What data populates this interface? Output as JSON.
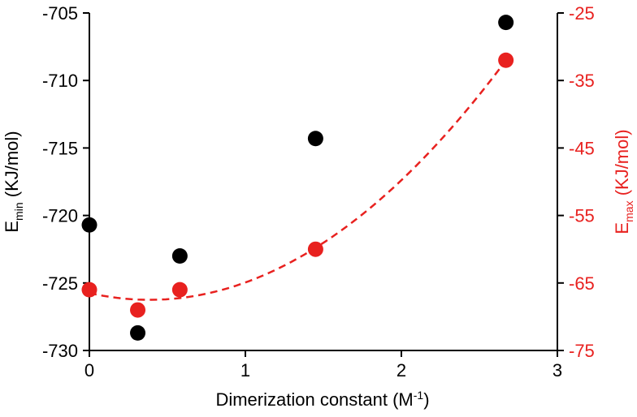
{
  "chart_data": {
    "type": "scatter",
    "title": "",
    "xlabel": "Dimerization constant (M",
    "xlabel_sup": "-1",
    "xlabel_tail": ")",
    "ylabel_left": {
      "base": "E",
      "sub": "min",
      "unit": " (KJ/mol)"
    },
    "ylabel_right": {
      "base": "E",
      "sub": "max",
      "unit": " (KJ/mol)"
    },
    "xlim": [
      0,
      3
    ],
    "ylim_left": [
      -730,
      -705
    ],
    "ylim_right": [
      -75,
      -25
    ],
    "x_ticks": [
      "0",
      "1",
      "2",
      "3"
    ],
    "y_left_ticks": [
      "-705",
      "-710",
      "-715",
      "-720",
      "-725",
      "-730"
    ],
    "y_right_ticks": [
      "-25",
      "-35",
      "-45",
      "-55",
      "-65",
      "-75"
    ],
    "grid": false,
    "series": [
      {
        "axis": "left",
        "color": "#000000",
        "points": [
          {
            "x": 0.0,
            "y": -720.7
          },
          {
            "x": 0.31,
            "y": -728.7
          },
          {
            "x": 0.58,
            "y": -723.0
          },
          {
            "x": 1.45,
            "y": -714.3
          },
          {
            "x": 2.67,
            "y": -705.7
          }
        ]
      },
      {
        "axis": "right",
        "color": "#e8211f",
        "points": [
          {
            "x": 0.0,
            "y": -66.0
          },
          {
            "x": 0.31,
            "y": -69.0
          },
          {
            "x": 0.58,
            "y": -66.0
          },
          {
            "x": 1.45,
            "y": -60.0
          },
          {
            "x": 2.67,
            "y": -32.0
          }
        ],
        "trendline": {
          "type": "quadratic-fit",
          "style": "dashed",
          "color": "#e8211f"
        }
      }
    ]
  }
}
